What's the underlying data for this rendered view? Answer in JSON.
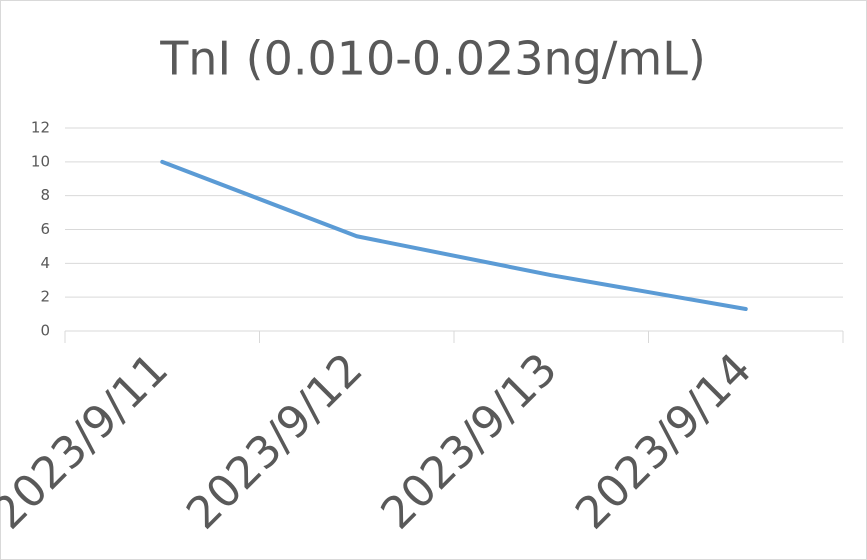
{
  "chart_data": {
    "type": "line",
    "title": "TnI (0.010-0.023ng/mL)",
    "categories": [
      "2023/9/11",
      "2023/9/12",
      "2023/9/13",
      "2023/9/14"
    ],
    "values": [
      10,
      5.6,
      3.3,
      1.3
    ],
    "color": "#5b9bd5",
    "ylim": [
      0,
      12
    ],
    "yticks": [
      0,
      2,
      4,
      6,
      8,
      10,
      12
    ],
    "grid": true
  }
}
